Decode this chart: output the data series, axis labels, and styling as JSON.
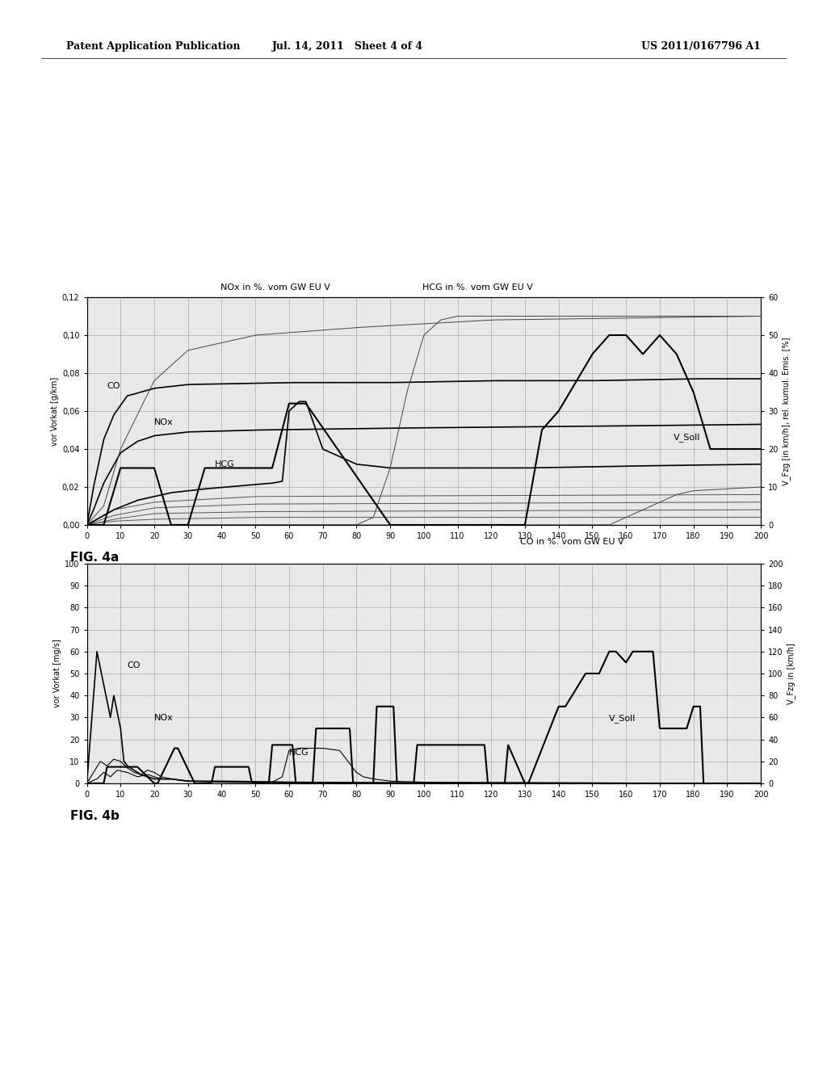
{
  "header_left": "Patent Application Publication",
  "header_center": "Jul. 14, 2011   Sheet 4 of 4",
  "header_right": "US 2011/0167796 A1",
  "fig4a": {
    "title_left": "NOx in %. vom GW EU V",
    "title_right": "HCG in %. vom GW EU V",
    "xlabel_bottom_right": "CO in %. vom GW EU V",
    "ylabel_left": "vor Vorkat [g/km]",
    "ylabel_right": "V_Fzg [in km/h], rel. kumul. Emis. [%]",
    "fig_label": "FIG. 4a",
    "xlim": [
      0,
      200
    ],
    "ylim_left": [
      0,
      0.12
    ],
    "ylim_right": [
      0,
      60
    ],
    "yticks_left": [
      0.0,
      0.02,
      0.04,
      0.06,
      0.08,
      0.1,
      0.12
    ],
    "yticks_right": [
      0,
      10,
      20,
      30,
      40,
      50,
      60
    ],
    "xticks": [
      0,
      10,
      20,
      30,
      40,
      50,
      60,
      70,
      80,
      90,
      100,
      110,
      120,
      130,
      140,
      150,
      160,
      170,
      180,
      190,
      200
    ]
  },
  "fig4b": {
    "ylabel_left": "vor Vorkat [mg/s]",
    "ylabel_right": "V_Fzg in [km/h]",
    "fig_label": "FIG. 4b",
    "xlim": [
      0,
      200
    ],
    "ylim_left": [
      0,
      100
    ],
    "ylim_right": [
      0,
      200
    ],
    "yticks_left": [
      0,
      10,
      20,
      30,
      40,
      50,
      60,
      70,
      80,
      90,
      100
    ],
    "yticks_right": [
      0,
      20,
      40,
      60,
      80,
      100,
      120,
      140,
      160,
      180,
      200
    ],
    "xticks": [
      0,
      10,
      20,
      30,
      40,
      50,
      60,
      70,
      80,
      90,
      100,
      110,
      120,
      130,
      140,
      150,
      160,
      170,
      180,
      190,
      200
    ]
  },
  "background_color": "#ffffff",
  "chart_bg": "#e8e8e8",
  "line_color": "#000000",
  "grid_color": "#aaaaaa"
}
